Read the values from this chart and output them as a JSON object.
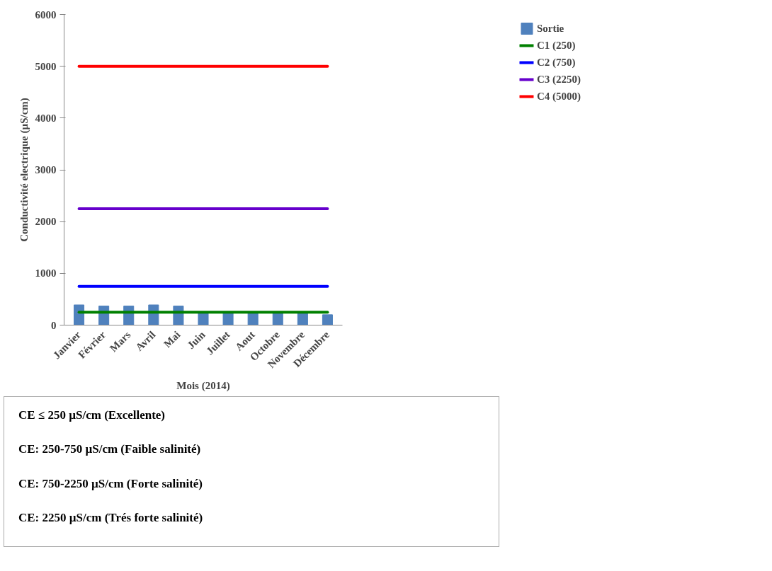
{
  "chart_data": {
    "type": "bar",
    "xlabel": "Mois (2014)",
    "ylabel": "Conductivité electrique (µS/cm)",
    "categories": [
      "Janvier",
      "Février",
      "Mars",
      "Avril",
      "Mai",
      "Juin",
      "Juillet",
      "Aout",
      "Octobre",
      "Novembre",
      "Décembre"
    ],
    "series": [
      {
        "name": "Sortie",
        "color": "#4f81bd",
        "values": [
          390,
          370,
          370,
          390,
          370,
          260,
          260,
          260,
          260,
          260,
          200
        ]
      },
      {
        "name": "C1 (250)",
        "type": "line",
        "color": "#008000",
        "values": [
          250,
          250,
          250,
          250,
          250,
          250,
          250,
          250,
          250,
          250,
          250
        ]
      },
      {
        "name": "C2 (750)",
        "type": "line",
        "color": "#0000ff",
        "values": [
          750,
          750,
          750,
          750,
          750,
          750,
          750,
          750,
          750,
          750,
          750
        ]
      },
      {
        "name": "C3 (2250)",
        "type": "line",
        "color": "#6600cc",
        "values": [
          2250,
          2250,
          2250,
          2250,
          2250,
          2250,
          2250,
          2250,
          2250,
          2250,
          2250
        ]
      },
      {
        "name": "C4 (5000)",
        "type": "line",
        "color": "#ff0000",
        "values": [
          5000,
          5000,
          5000,
          5000,
          5000,
          5000,
          5000,
          5000,
          5000,
          5000,
          5000
        ]
      }
    ],
    "ylim": [
      0,
      6000
    ],
    "yticks": [
      0,
      1000,
      2000,
      3000,
      4000,
      5000,
      6000
    ],
    "grid": false,
    "legend": "top right",
    "annotations": [
      "CE ≤ 250 µS/cm (Excellente)",
      "CE: 250-750 µS/cm (Faible salinité)",
      "CE: 750-2250 µS/cm (Forte salinité)",
      "CE: 2250 µS/cm (Trés forte salinité)"
    ]
  }
}
